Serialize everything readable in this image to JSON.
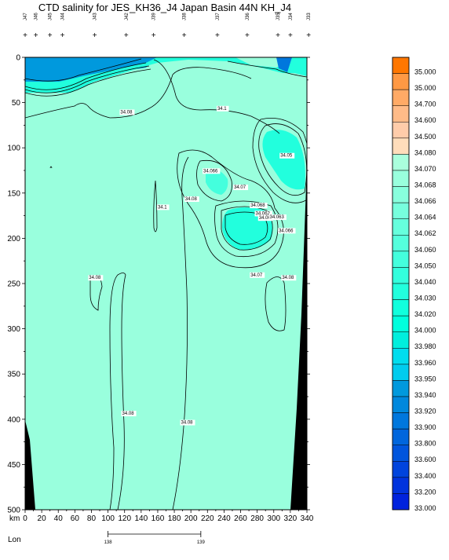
{
  "chart_data": {
    "type": "heatmap",
    "title": "CTD salinity for JES_KH36_J4 Japan Basin 44N KH_J4",
    "xlabel": "km",
    "x_axis": {
      "range": [
        0,
        340
      ],
      "ticks": [
        0,
        10,
        20,
        30,
        40,
        50,
        60,
        70,
        80,
        90,
        100,
        110,
        120,
        130,
        140,
        150,
        160,
        170,
        180,
        190,
        200,
        210,
        220,
        230,
        240,
        250,
        260,
        270,
        280,
        290,
        300,
        310,
        320,
        330,
        340
      ],
      "labels": [
        "0",
        "20",
        "40",
        "60",
        "80",
        "100",
        "120",
        "140",
        "160",
        "180",
        "200",
        "220",
        "240",
        "260",
        "280",
        "300",
        "320",
        "340"
      ]
    },
    "y_axis": {
      "range": [
        0,
        500
      ],
      "inverted": true,
      "ticks": [
        0,
        25,
        50,
        75,
        100,
        125,
        150,
        175,
        200,
        225,
        250,
        275,
        300,
        325,
        350,
        375,
        400,
        425,
        450,
        475,
        500
      ],
      "labels": [
        "0",
        "50",
        "100",
        "150",
        "200",
        "250",
        "300",
        "350",
        "400",
        "450",
        "500"
      ]
    },
    "lon_axis": {
      "label": "Lon",
      "ticks": [
        {
          "lon": 138,
          "x_km": 100
        },
        {
          "lon": 139,
          "x_km": 212
        }
      ]
    },
    "stations": [
      {
        "name": "J47",
        "x": 0
      },
      {
        "name": "J46",
        "x": 13
      },
      {
        "name": "J45",
        "x": 30
      },
      {
        "name": "J44",
        "x": 45
      },
      {
        "name": "J43",
        "x": 84
      },
      {
        "name": "J42",
        "x": 122
      },
      {
        "name": "J39",
        "x": 155
      },
      {
        "name": "J38",
        "x": 192
      },
      {
        "name": "J37",
        "x": 232
      },
      {
        "name": "J36",
        "x": 268
      },
      {
        "name": "J35",
        "x": 305
      },
      {
        "name": "J34",
        "x": 320
      },
      {
        "name": "J33",
        "x": 342
      }
    ],
    "station_markers": [
      0,
      13,
      30,
      45,
      84,
      122,
      155,
      192,
      232,
      268,
      305,
      320,
      342
    ],
    "colorbar": {
      "colors": [
        "#ff7700",
        "#ff9944",
        "#ffaa66",
        "#ffbb88",
        "#ffccaa",
        "#ffddbb",
        "#aaffdd",
        "#99ffdd",
        "#88ffdd",
        "#77ffdd",
        "#66ffdd",
        "#55ffdd",
        "#44ffdd",
        "#33ffdd",
        "#22ffdd",
        "#11ffdd",
        "#00ffdd",
        "#00eedd",
        "#00ddee",
        "#00ccee",
        "#0099dd",
        "#0088dd",
        "#0077dd",
        "#0066dd",
        "#0055dd",
        "#0044dd",
        "#0033dd",
        "#0022dd"
      ],
      "levels": [
        "35.000",
        "35.000",
        "34.700",
        "34.600",
        "34.500",
        "34.080",
        "34.070",
        "34.068",
        "34.066",
        "34.064",
        "34.062",
        "34.060",
        "34.050",
        "34.040",
        "34.030",
        "34.020",
        "34.000",
        "33.980",
        "33.960",
        "33.950",
        "33.940",
        "33.920",
        "33.900",
        "33.800",
        "33.600",
        "33.400",
        "33.200",
        "33.000"
      ]
    },
    "contour_labels": [
      {
        "text": "34.08",
        "x": 115,
        "y": 62
      },
      {
        "text": "34.1",
        "x": 232,
        "y": 58
      },
      {
        "text": "34.05",
        "x": 308,
        "y": 110
      },
      {
        "text": "34.066",
        "x": 215,
        "y": 127
      },
      {
        "text": "34.07",
        "x": 252,
        "y": 145
      },
      {
        "text": "34.08",
        "x": 193,
        "y": 158
      },
      {
        "text": "34.1",
        "x": 160,
        "y": 167
      },
      {
        "text": "34.068",
        "x": 272,
        "y": 165
      },
      {
        "text": "34.062",
        "x": 278,
        "y": 174
      },
      {
        "text": "34.06",
        "x": 282,
        "y": 179
      },
      {
        "text": "34.063",
        "x": 295,
        "y": 178
      },
      {
        "text": "34.066",
        "x": 306,
        "y": 193
      },
      {
        "text": "34.08",
        "x": 77,
        "y": 245
      },
      {
        "text": "34.07",
        "x": 272,
        "y": 242
      },
      {
        "text": "34.08",
        "x": 310,
        "y": 245
      },
      {
        "text": "34.08",
        "x": 117,
        "y": 395
      },
      {
        "text": "34.08",
        "x": 188,
        "y": 405
      }
    ],
    "grid": false,
    "legend": "right"
  }
}
